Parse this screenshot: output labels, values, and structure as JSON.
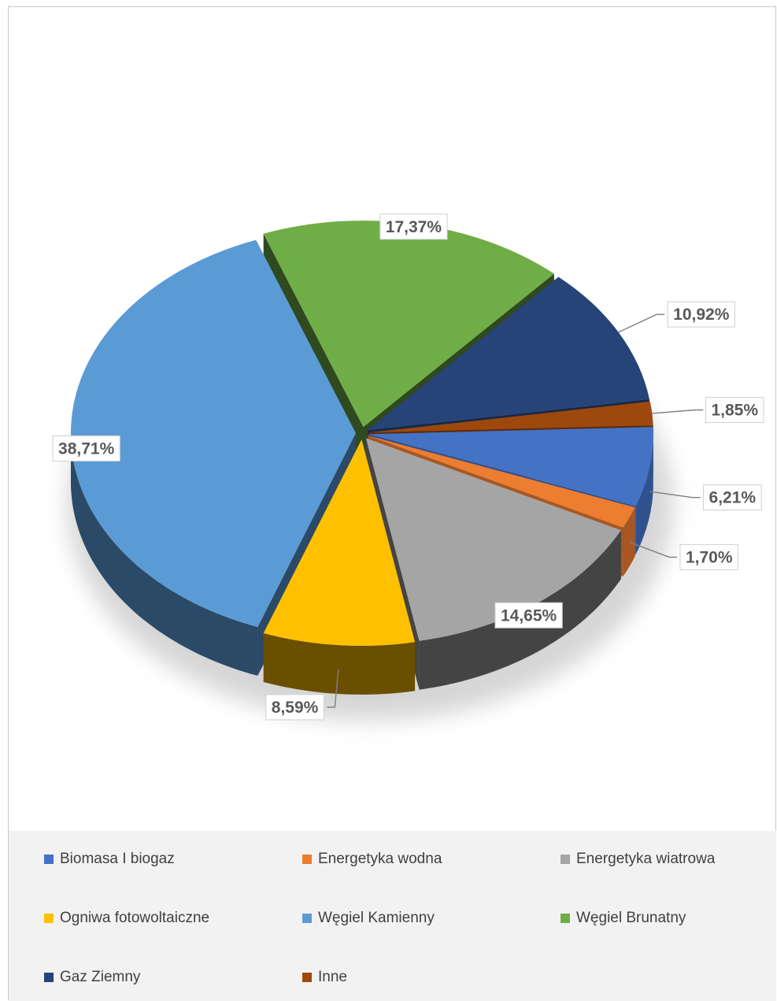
{
  "chart_data": {
    "type": "pie",
    "title": "",
    "three_d": true,
    "legend_position": "bottom",
    "slices": [
      {
        "label": "Biomasa I biogaz",
        "value": 6.21,
        "display": "6,21%",
        "color": "#4472c4",
        "side_color": "#2f528f"
      },
      {
        "label": "Energetyka wodna",
        "value": 1.7,
        "display": "1,70%",
        "color": "#ed7d31",
        "side_color": "#a85722"
      },
      {
        "label": "Energetyka wiatrowa",
        "value": 14.65,
        "display": "14,65%",
        "color": "#a5a5a5",
        "side_color": "#444444"
      },
      {
        "label": "Ogniwa fotowoltaiczne",
        "value": 8.59,
        "display": "8,59%",
        "color": "#ffc000",
        "side_color": "#6b4f00"
      },
      {
        "label": "Węgiel Kamienny",
        "value": 38.71,
        "display": "38,71%",
        "color": "#5b9bd5",
        "side_color": "#2b4a68"
      },
      {
        "label": "Węgiel Brunatny",
        "value": 17.37,
        "display": "17,37%",
        "color": "#70ad47",
        "side_color": "#2f4a1e"
      },
      {
        "label": "Gaz Ziemny",
        "value": 10.92,
        "display": "10,92%",
        "color": "#264478",
        "side_color": "#16294a"
      },
      {
        "label": "Inne",
        "value": 1.85,
        "display": "1,85%",
        "color": "#9e480e",
        "side_color": "#5e2a08"
      }
    ]
  }
}
